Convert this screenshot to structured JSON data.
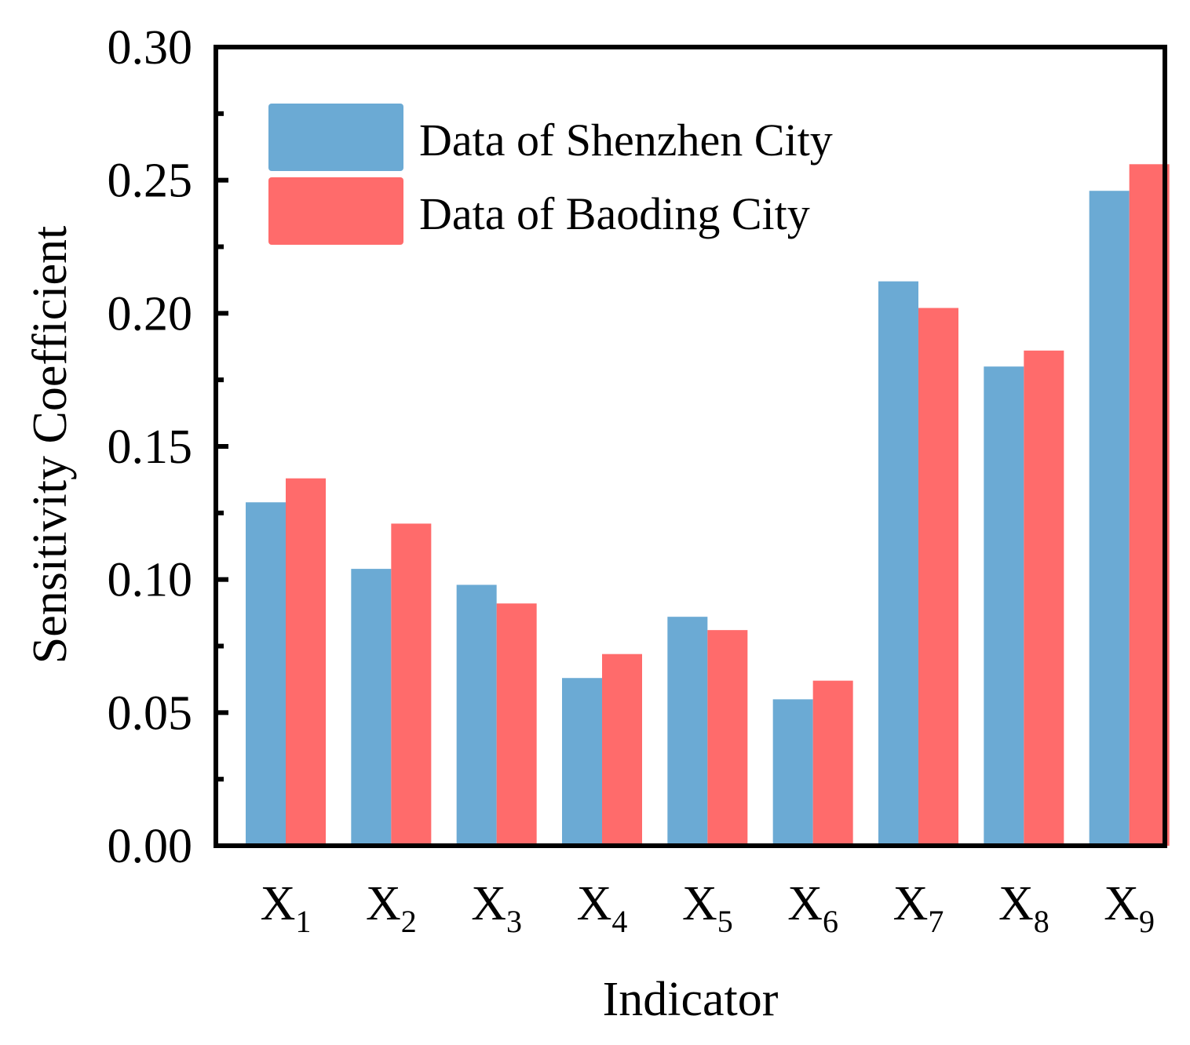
{
  "chart_data": {
    "type": "bar",
    "xlabel": "Indicator",
    "ylabel": "Sensitivity Coefficient",
    "ylim": [
      0,
      0.3
    ],
    "yticks": [
      "0.00",
      "0.05",
      "0.10",
      "0.15",
      "0.20",
      "0.25",
      "0.30"
    ],
    "categories": [
      {
        "base": "X",
        "sub": "1"
      },
      {
        "base": "X",
        "sub": "2"
      },
      {
        "base": "X",
        "sub": "3"
      },
      {
        "base": "X",
        "sub": "4"
      },
      {
        "base": "X",
        "sub": "5"
      },
      {
        "base": "X",
        "sub": "6"
      },
      {
        "base": "X",
        "sub": "7"
      },
      {
        "base": "X",
        "sub": "8"
      },
      {
        "base": "X",
        "sub": "9"
      }
    ],
    "series": [
      {
        "name": "Data of Shenzhen City",
        "color": "#6baad4",
        "values": [
          0.129,
          0.104,
          0.098,
          0.063,
          0.086,
          0.055,
          0.212,
          0.18,
          0.246
        ]
      },
      {
        "name": "Data of Baoding City",
        "color": "#ff6b6b",
        "values": [
          0.138,
          0.121,
          0.091,
          0.072,
          0.081,
          0.062,
          0.202,
          0.186,
          0.256
        ]
      }
    ],
    "grid": false,
    "legend_position": "top-left"
  }
}
